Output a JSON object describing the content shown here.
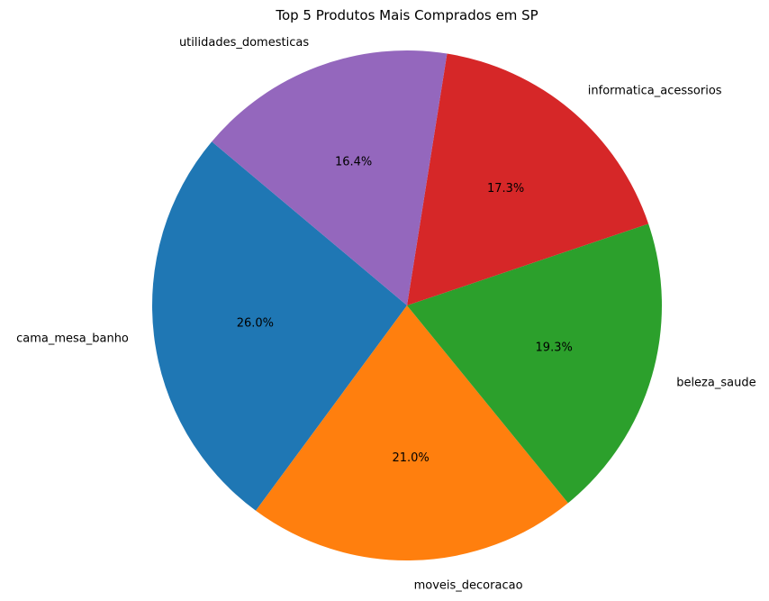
{
  "chart_data": {
    "type": "pie",
    "title": "Top 5 Produtos Mais Comprados em SP",
    "start_angle_deg": 140,
    "direction": "counterclockwise",
    "slices": [
      {
        "label": "cama_mesa_banho",
        "value": 26.0,
        "pct_text": "26.0%",
        "color": "#1f77b4"
      },
      {
        "label": "moveis_decoracao",
        "value": 21.0,
        "pct_text": "21.0%",
        "color": "#ff7f0e"
      },
      {
        "label": "beleza_saude",
        "value": 19.3,
        "pct_text": "19.3%",
        "color": "#2ca02c"
      },
      {
        "label": "informatica_acessorios",
        "value": 17.3,
        "pct_text": "17.3%",
        "color": "#d62728"
      },
      {
        "label": "utilidades_domesticas",
        "value": 16.4,
        "pct_text": "16.4%",
        "color": "#9467bd"
      }
    ]
  }
}
